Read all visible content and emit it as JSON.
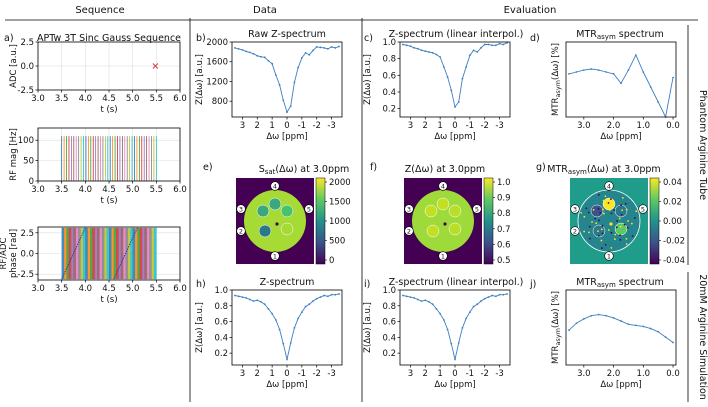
{
  "headers": {
    "sequence": "Sequence",
    "data": "Data",
    "evaluation": "Evaluation",
    "row1_side": "Phantom Arginine Tube",
    "row2_side": "20mM Arginine Simulation"
  },
  "colors": {
    "line": "#3d7fc1",
    "adc_marker": "#e03030",
    "grid": "#dedede"
  },
  "colorbars": {
    "e": {
      "ticks": [
        "2000",
        "1500",
        "1000",
        "500",
        "0"
      ]
    },
    "f": {
      "ticks": [
        "1.0",
        "0.9",
        "0.8",
        "0.7",
        "0.6",
        "0.5"
      ]
    },
    "g": {
      "ticks": [
        "0.04",
        "0.02",
        "0.00",
        "-0.02",
        "-0.04"
      ]
    }
  },
  "phantom_markers": [
    "1",
    "2",
    "3",
    "4",
    "5"
  ],
  "chart_data": [
    {
      "id": "a1",
      "panel": "a)",
      "type": "scatter",
      "title": "APTw 3T Sinc Gauss Sequence",
      "xlabel": "t (s)",
      "ylabel": "ADC [a.u.]",
      "xlim": [
        3.0,
        6.0
      ],
      "ylim": [
        -2.5,
        2.5
      ],
      "xticks": [
        "3.0",
        "3.5",
        "4.0",
        "4.5",
        "5.0",
        "5.5",
        "6.0"
      ],
      "yticks": [
        "2.5",
        "0.0",
        "-2.5"
      ],
      "points": [
        {
          "x": 5.48,
          "y": 0.0
        }
      ]
    },
    {
      "id": "a2",
      "type": "line",
      "xlabel": "t (s)",
      "ylabel": "RF mag [Hz]",
      "xlim": [
        3.0,
        6.0
      ],
      "ylim": [
        0,
        130
      ],
      "xticks": [
        "3.0",
        "3.5",
        "4.0",
        "4.5",
        "5.0",
        "5.5",
        "6.0"
      ],
      "yticks": [
        "100",
        "50",
        "0"
      ],
      "pulses": {
        "start": 3.5,
        "end": 5.5,
        "count": 40,
        "amplitude": 110
      }
    },
    {
      "id": "a3",
      "type": "line",
      "xlabel": "t (s)",
      "ylabel": "RF/ADC phase [rad]",
      "xlim": [
        3.0,
        6.0
      ],
      "ylim": [
        -3.2,
        3.2
      ],
      "xticks": [
        "3.0",
        "3.5",
        "4.0",
        "4.5",
        "5.0",
        "5.5",
        "6.0"
      ],
      "yticks": [
        "2.5",
        "0.0",
        "-2.5"
      ],
      "pulses": {
        "start": 3.5,
        "end": 5.5,
        "count": 40
      }
    },
    {
      "id": "b",
      "panel": "b)",
      "type": "line",
      "title": "Raw Z-spectrum",
      "xlabel": "Δω [ppm]",
      "ylabel": "Z(Δω) [a.u.]",
      "xlim": [
        3.7,
        -3.7
      ],
      "ylim": [
        480,
        2000
      ],
      "xticks": [
        "3",
        "2",
        "1",
        "0",
        "-1",
        "-2",
        "-3"
      ],
      "yticks": [
        "2000",
        "1600",
        "1200",
        "800"
      ],
      "x": [
        3.5,
        3.25,
        3.0,
        2.75,
        2.5,
        2.25,
        2.0,
        1.75,
        1.5,
        1.25,
        1.0,
        0.75,
        0.5,
        0.25,
        0.0,
        -0.25,
        -0.5,
        -0.75,
        -1.0,
        -1.25,
        -1.5,
        -1.75,
        -2.0,
        -2.25,
        -2.5,
        -2.75,
        -3.0,
        -3.25,
        -3.5
      ],
      "values": [
        1880,
        1860,
        1840,
        1810,
        1790,
        1760,
        1720,
        1700,
        1690,
        1620,
        1560,
        1330,
        1130,
        820,
        580,
        700,
        1180,
        1480,
        1680,
        1780,
        1740,
        1830,
        1900,
        1890,
        1880,
        1860,
        1900,
        1880,
        1910
      ]
    },
    {
      "id": "c",
      "panel": "c)",
      "type": "line",
      "title": "Z-spectrum (linear interpol.)",
      "xlabel": "Δω [ppm]",
      "ylabel": "Z(Δω) [a.u.]",
      "xlim": [
        3.7,
        -3.7
      ],
      "ylim": [
        0.1,
        1.0
      ],
      "xticks": [
        "3",
        "2",
        "1",
        "0",
        "-1",
        "-2",
        "-3"
      ],
      "yticks": [
        "1.0",
        "0.8",
        "0.6",
        "0.4",
        "0.2"
      ],
      "x": [
        3.5,
        3.25,
        3.0,
        2.75,
        2.5,
        2.25,
        2.0,
        1.75,
        1.5,
        1.25,
        1.0,
        0.75,
        0.5,
        0.25,
        0.0,
        -0.25,
        -0.5,
        -0.75,
        -1.0,
        -1.25,
        -1.5,
        -1.75,
        -2.0,
        -2.25,
        -2.5,
        -2.75,
        -3.0,
        -3.25,
        -3.5
      ],
      "values": [
        0.97,
        0.96,
        0.95,
        0.93,
        0.92,
        0.9,
        0.89,
        0.88,
        0.87,
        0.85,
        0.82,
        0.7,
        0.58,
        0.42,
        0.22,
        0.28,
        0.56,
        0.7,
        0.84,
        0.9,
        0.88,
        0.93,
        0.97,
        0.97,
        0.96,
        0.96,
        0.98,
        0.97,
        0.99
      ]
    },
    {
      "id": "d",
      "panel": "d)",
      "type": "line",
      "title": "MTRasym spectrum",
      "xlabel": "Δω [ppm]",
      "ylabel": "MTRasym(Δω) [%]",
      "xlim": [
        3.6,
        -0.1
      ],
      "ylim": [
        -10,
        10
      ],
      "xticks": [
        "3.0",
        "2.0",
        "1.0",
        "0.0"
      ],
      "yticks": [],
      "x": [
        3.5,
        3.25,
        3.0,
        2.75,
        2.5,
        2.25,
        2.0,
        1.75,
        1.5,
        1.25,
        1.0,
        0.75,
        0.5,
        0.25,
        0.0
      ],
      "values": [
        1.5,
        2.0,
        2.5,
        2.8,
        2.5,
        2.0,
        1.5,
        -1.0,
        2.5,
        6.5,
        2.0,
        -2.0,
        -6.0,
        -10.0,
        0.5
      ]
    },
    {
      "id": "h",
      "panel": "h)",
      "type": "line",
      "title": "Z-spectrum",
      "xlabel": "Δω [ppm]",
      "ylabel": "Z(Δω) [a.u.]",
      "xlim": [
        3.7,
        -3.7
      ],
      "ylim": [
        0.05,
        1.0
      ],
      "xticks": [
        "3",
        "2",
        "1",
        "0",
        "-1",
        "-2",
        "-3"
      ],
      "yticks": [
        "1.0",
        "0.8",
        "0.6",
        "0.4",
        "0.2"
      ],
      "x": [
        3.5,
        3.25,
        3.0,
        2.75,
        2.5,
        2.25,
        2.0,
        1.75,
        1.5,
        1.25,
        1.0,
        0.75,
        0.5,
        0.25,
        0.0,
        -0.25,
        -0.5,
        -0.75,
        -1.0,
        -1.25,
        -1.5,
        -1.75,
        -2.0,
        -2.25,
        -2.5,
        -2.75,
        -3.0,
        -3.25,
        -3.5
      ],
      "values": [
        0.93,
        0.92,
        0.91,
        0.9,
        0.88,
        0.86,
        0.87,
        0.85,
        0.82,
        0.76,
        0.7,
        0.62,
        0.5,
        0.32,
        0.12,
        0.33,
        0.52,
        0.64,
        0.72,
        0.79,
        0.82,
        0.86,
        0.89,
        0.91,
        0.93,
        0.92,
        0.94,
        0.94,
        0.95
      ]
    },
    {
      "id": "i",
      "panel": "i)",
      "type": "line",
      "title": "Z-spectrum (linear interpol.)",
      "xlabel": "Δω [ppm]",
      "ylabel": "Z(Δω) [a.u.]",
      "xlim": [
        3.7,
        -3.7
      ],
      "ylim": [
        0.05,
        1.0
      ],
      "xticks": [
        "3",
        "2",
        "1",
        "0",
        "-1",
        "-2",
        "-3"
      ],
      "yticks": [
        "1.0",
        "0.8",
        "0.6",
        "0.4",
        "0.2"
      ],
      "x": [
        3.5,
        3.25,
        3.0,
        2.75,
        2.5,
        2.25,
        2.0,
        1.75,
        1.5,
        1.25,
        1.0,
        0.75,
        0.5,
        0.25,
        0.0,
        -0.25,
        -0.5,
        -0.75,
        -1.0,
        -1.25,
        -1.5,
        -1.75,
        -2.0,
        -2.25,
        -2.5,
        -2.75,
        -3.0,
        -3.25,
        -3.5
      ],
      "values": [
        0.93,
        0.92,
        0.91,
        0.9,
        0.88,
        0.86,
        0.87,
        0.85,
        0.82,
        0.76,
        0.7,
        0.62,
        0.5,
        0.32,
        0.12,
        0.33,
        0.52,
        0.64,
        0.72,
        0.79,
        0.82,
        0.86,
        0.89,
        0.91,
        0.93,
        0.92,
        0.94,
        0.94,
        0.95
      ]
    },
    {
      "id": "j",
      "panel": "j)",
      "type": "line",
      "title": "MTRasym spectrum",
      "xlabel": "Δω [ppm]",
      "ylabel": "MTRasym(Δω) [%]",
      "xlim": [
        3.6,
        -0.1
      ],
      "ylim": [
        -4,
        10
      ],
      "xticks": [
        "3.0",
        "2.0",
        "1.0",
        "0.0"
      ],
      "yticks": [],
      "x": [
        3.5,
        3.25,
        3.0,
        2.75,
        2.5,
        2.25,
        2.0,
        1.75,
        1.5,
        1.25,
        1.0,
        0.75,
        0.5,
        0.25,
        0.0
      ],
      "values": [
        2.5,
        3.8,
        4.6,
        5.2,
        5.4,
        5.2,
        4.8,
        4.2,
        3.6,
        3.4,
        3.2,
        2.8,
        2.2,
        1.2,
        0.2
      ]
    }
  ],
  "maps": [
    {
      "id": "e",
      "panel": "e)",
      "title": "Ssat(Δω) at 3.0ppm"
    },
    {
      "id": "f",
      "panel": "f)",
      "title": "Z(Δω) at 3.0ppm"
    },
    {
      "id": "g",
      "panel": "g)",
      "title": "MTRasym(Δω) at 3.0ppm"
    }
  ]
}
